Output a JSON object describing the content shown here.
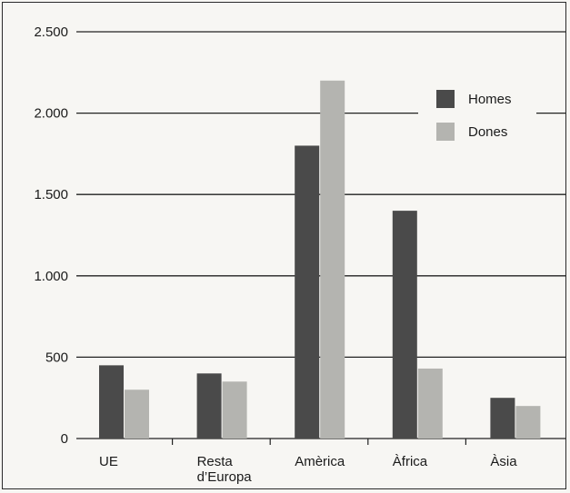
{
  "chart_data": {
    "type": "bar",
    "title": "",
    "xlabel": "",
    "ylabel": "",
    "categories": [
      [
        "UE"
      ],
      [
        "Resta",
        "d’Europa"
      ],
      [
        "Amèrica"
      ],
      [
        "Àfrica"
      ],
      [
        "Àsia"
      ]
    ],
    "series": [
      {
        "name": "Homes",
        "color": "#4a4a4a",
        "values": [
          450,
          400,
          1800,
          1400,
          250
        ]
      },
      {
        "name": "Dones",
        "color": "#b4b4b0",
        "values": [
          300,
          350,
          2200,
          430,
          200
        ]
      }
    ],
    "ylim": [
      0,
      2500
    ],
    "yticks": [
      {
        "value": 0,
        "label": "0"
      },
      {
        "value": 500,
        "label": "500"
      },
      {
        "value": 1000,
        "label": "1.000"
      },
      {
        "value": 1500,
        "label": "1.500"
      },
      {
        "value": 2000,
        "label": "2.000"
      },
      {
        "value": 2500,
        "label": "2.500"
      }
    ],
    "grid": true,
    "legend_position": "top-right"
  }
}
